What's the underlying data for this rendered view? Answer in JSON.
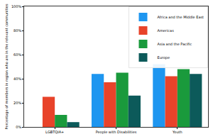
{
  "chart_data": {
    "type": "bar",
    "y_label": "Percentage of members in region who are in the relevant communities",
    "categories": [
      "LGBTQIA+",
      "People with Disabilities",
      "Youth"
    ],
    "series": [
      {
        "name": "Africa and the Middle East",
        "color": "#1e96f0",
        "values": [
          null,
          44,
          52
        ]
      },
      {
        "name": "Americas",
        "color": "#e8432a",
        "values": [
          25,
          37,
          42
        ]
      },
      {
        "name": "Asia and the Pacific",
        "color": "#1a9a3c",
        "values": [
          10,
          45,
          48
        ]
      },
      {
        "name": "Europe",
        "color": "#0c5a5a",
        "values": [
          4,
          26,
          44
        ]
      }
    ],
    "ylim": [
      0,
      100
    ],
    "yticks": [
      {
        "value": 0,
        "label": "0%"
      },
      {
        "value": 20,
        "label": "20%"
      },
      {
        "value": 40,
        "label": "40%"
      },
      {
        "value": 60,
        "label": "60%"
      },
      {
        "value": 80,
        "label": "80%"
      },
      {
        "value": 100,
        "label": "100%"
      }
    ],
    "grid": false,
    "legend": "upper right"
  }
}
